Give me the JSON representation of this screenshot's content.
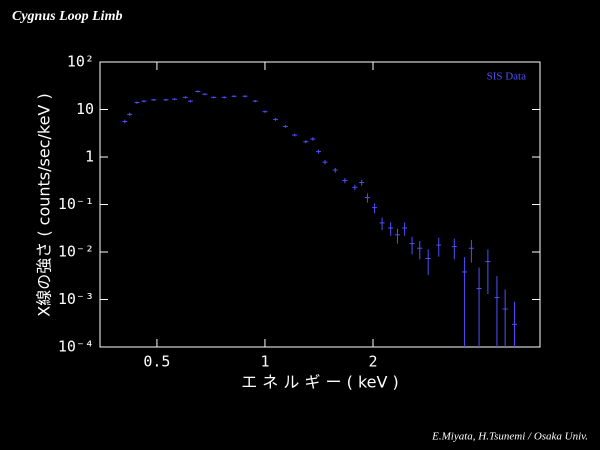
{
  "chart_data": {
    "type": "errorbar",
    "title": "Cygnus Loop Limb",
    "xlabel": "エ ネ ル ギ ー ( keV )",
    "ylabel": "X線の強さ ( counts/sec/keV )",
    "credit": "E.Miyata, H.Tsunemi / Osaka Univ.",
    "xscale": "log",
    "yscale": "log",
    "xlim": [
      0.347,
      5.84
    ],
    "ylim": [
      0.0001,
      100
    ],
    "xticks": [
      0.5,
      1,
      2
    ],
    "yticks": [
      {
        "value": 100,
        "label": "10²"
      },
      10,
      1,
      {
        "value": 0.1,
        "label": "10⁻¹"
      },
      {
        "value": 0.01,
        "label": "10⁻²"
      },
      {
        "value": 0.001,
        "label": "10⁻³"
      },
      {
        "value": 0.0001,
        "label": "10⁻⁴"
      }
    ],
    "legend": "upper right",
    "x": [
      0.407,
      0.42,
      0.44,
      0.46,
      0.49,
      0.53,
      0.56,
      0.6,
      0.62,
      0.65,
      0.68,
      0.72,
      0.77,
      0.82,
      0.88,
      0.94,
      1.0,
      1.07,
      1.14,
      1.21,
      1.3,
      1.36,
      1.41,
      1.47,
      1.57,
      1.67,
      1.78,
      1.86,
      1.93,
      2.02,
      2.12,
      2.24,
      2.34,
      2.45,
      2.57,
      2.7,
      2.85,
      3.05,
      3.37,
      3.6,
      3.76,
      3.95,
      4.18,
      4.43,
      4.67,
      4.96
    ],
    "series": [
      {
        "name": "SIS Data",
        "color": "#5050ff",
        "values": [
          5.6,
          7.9,
          14,
          15,
          16,
          16,
          16.5,
          18,
          15,
          24,
          21,
          18,
          18,
          19,
          19,
          15,
          9,
          6.2,
          4.4,
          2.9,
          2.1,
          2.4,
          1.3,
          0.78,
          0.53,
          0.32,
          0.23,
          0.29,
          0.14,
          0.086,
          0.041,
          0.032,
          0.023,
          0.032,
          0.015,
          0.012,
          0.0073,
          0.014,
          0.013,
          0.0038,
          0.012,
          0.0017,
          0.0063,
          0.0011,
          0.00063,
          0.0003
        ],
        "errors": [
          0.5,
          0.6,
          0.8,
          0.8,
          0.8,
          0.8,
          0.8,
          0.9,
          0.8,
          1.2,
          1,
          0.9,
          0.9,
          0.9,
          1,
          0.8,
          0.5,
          0.4,
          0.3,
          0.2,
          0.15,
          0.2,
          0.12,
          0.08,
          0.06,
          0.04,
          0.03,
          0.04,
          0.03,
          0.02,
          0.012,
          0.01,
          0.008,
          0.01,
          0.006,
          0.005,
          0.004,
          0.006,
          0.006,
          0.004,
          0.006,
          0.003,
          0.005,
          0.002,
          0.001,
          0.0006
        ]
      }
    ]
  }
}
